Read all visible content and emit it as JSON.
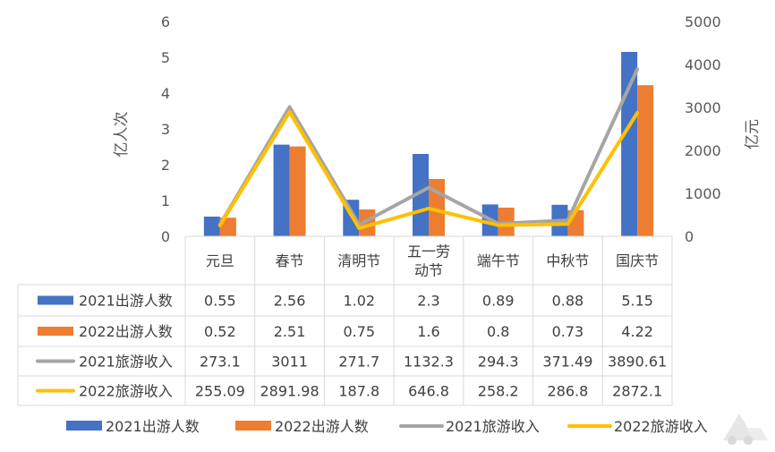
{
  "chart_data": {
    "type": "bar",
    "categories": [
      "元旦",
      "春节",
      "清明节",
      "五一劳动节",
      "端午节",
      "中秋节",
      "国庆节"
    ],
    "category_lines": [
      [
        "元旦"
      ],
      [
        "春节"
      ],
      [
        "清明节"
      ],
      [
        "五一劳",
        "动节"
      ],
      [
        "端午节"
      ],
      [
        "中秋节"
      ],
      [
        "国庆节"
      ]
    ],
    "ylabel": "亿人次",
    "y2label": "亿元",
    "ylim": [
      0,
      6
    ],
    "y2lim": [
      0,
      5000
    ],
    "yticks": [
      "0",
      "1",
      "2",
      "3",
      "4",
      "5",
      "6"
    ],
    "y2ticks": [
      "0",
      "1000",
      "2000",
      "3000",
      "4000",
      "5000"
    ],
    "legend_position": "bottom",
    "grid": false,
    "series": [
      {
        "name": "2021出游人数",
        "type": "bar",
        "axis": "left",
        "color": "#4472C4",
        "values": [
          0.55,
          2.56,
          1.02,
          2.3,
          0.89,
          0.88,
          5.15
        ],
        "labels": [
          "0.55",
          "2.56",
          "1.02",
          "2.3",
          "0.89",
          "0.88",
          "5.15"
        ]
      },
      {
        "name": "2022出游人数",
        "type": "bar",
        "axis": "left",
        "color": "#ED7D31",
        "values": [
          0.52,
          2.51,
          0.75,
          1.6,
          0.8,
          0.73,
          4.22
        ],
        "labels": [
          "0.52",
          "2.51",
          "0.75",
          "1.6",
          "0.8",
          "0.73",
          "4.22"
        ]
      },
      {
        "name": "2021旅游收入",
        "type": "line",
        "axis": "right",
        "color": "#A5A5A5",
        "values": [
          273.1,
          3011,
          271.7,
          1132.3,
          294.3,
          371.49,
          3890.61
        ],
        "labels": [
          "273.1",
          "3011",
          "271.7",
          "1132.3",
          "294.3",
          "371.49",
          "3890.61"
        ]
      },
      {
        "name": "2022旅游收入",
        "type": "line",
        "axis": "right",
        "color": "#FFC000",
        "values": [
          255.09,
          2891.98,
          187.8,
          646.8,
          258.2,
          286.8,
          2872.1
        ],
        "labels": [
          "255.09",
          "2891.98",
          "187.8",
          "646.8",
          "258.2",
          "286.8",
          "2872.1"
        ]
      }
    ]
  }
}
